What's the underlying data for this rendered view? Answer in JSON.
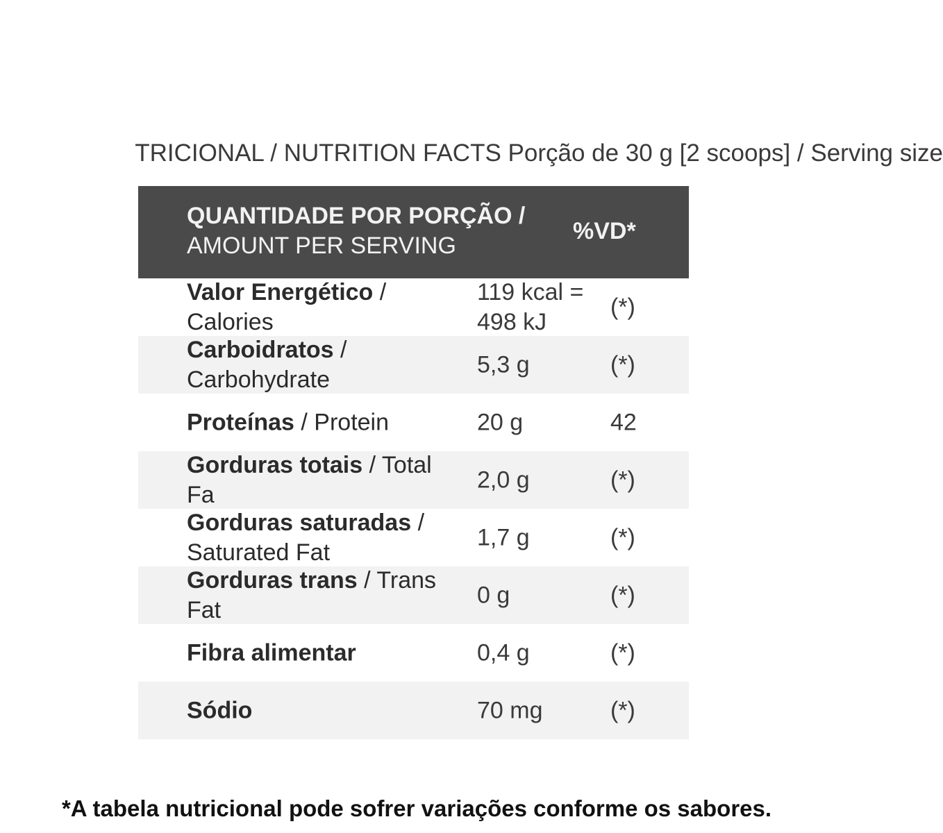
{
  "caption": "TRICIONAL / NUTRITION FACTS Porção de 30 g [2 scoops] / Serving size",
  "header": {
    "left_bold": "QUANTIDADE POR PORÇÃO /",
    "left_regular": "AMOUNT PER SERVING",
    "right": "%VD*"
  },
  "rows": [
    {
      "pt": "Valor Energético",
      "sep": " / ",
      "en": "Calories",
      "qty_line1": "119 kcal =",
      "qty_line2": "498 kJ",
      "vd": "(*)"
    },
    {
      "pt": "Carboidratos",
      "sep": " / ",
      "en": "Carbohydrate",
      "qty": "5,3 g",
      "vd": "(*)"
    },
    {
      "pt": "Proteínas",
      "sep": " / ",
      "en": "Protein",
      "qty": "20 g",
      "vd": "42"
    },
    {
      "pt": "Gorduras totais",
      "sep": " / ",
      "en": "Total Fa",
      "qty": "2,0 g",
      "vd": "(*)"
    },
    {
      "pt": "Gorduras saturadas",
      "sep": " / ",
      "en": "Saturated Fat",
      "qty": "1,7 g",
      "vd": "(*)"
    },
    {
      "pt": "Gorduras trans",
      "sep": " / ",
      "en": "Trans Fat",
      "qty": "0 g",
      "vd": "(*)"
    },
    {
      "pt": "Fibra alimentar",
      "qty": "0,4 g",
      "vd": "(*)"
    },
    {
      "pt": "Sódio",
      "qty": "70 mg",
      "vd": "(*)"
    }
  ],
  "footnote": "*A tabela nutricional pode sofrer variações conforme os sabores.",
  "colors": {
    "header_bg": "#4a4a4a",
    "stripe_bg": "#f2f2f2"
  }
}
